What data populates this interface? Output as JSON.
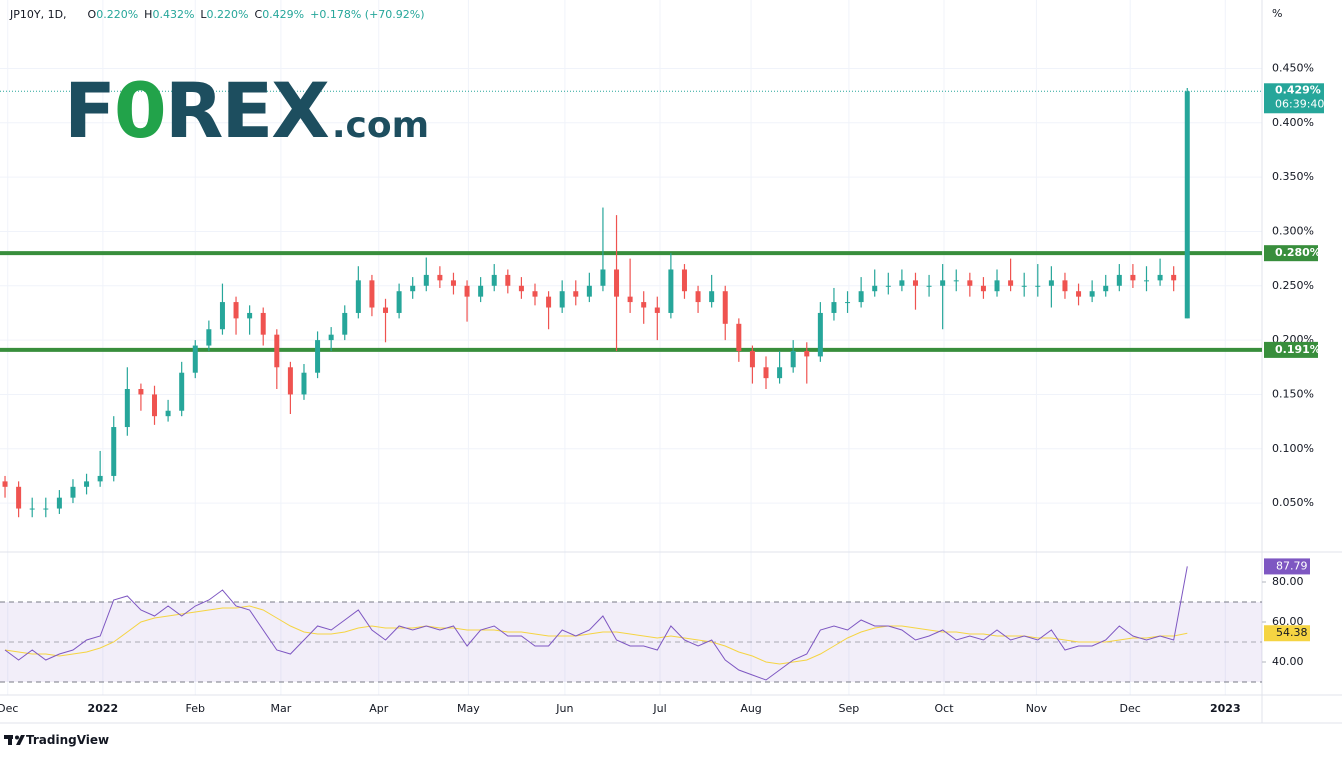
{
  "header": {
    "symbol": "JP10Y, 1D,",
    "ohlc": [
      {
        "key": "O",
        "value": "0.220%"
      },
      {
        "key": "H",
        "value": "0.432%"
      },
      {
        "key": "L",
        "value": "0.220%"
      },
      {
        "key": "C",
        "value": "0.429%"
      }
    ],
    "change": "+0.178% (+70.92%)"
  },
  "logo": {
    "parts": [
      "F",
      "0",
      "REX",
      ".com"
    ]
  },
  "footer": "TradingView",
  "chart_data": [
    {
      "type": "candlestick",
      "unit_label": "%",
      "categories": [
        null,
        null,
        null,
        null,
        null,
        null,
        null,
        null,
        null,
        null,
        null,
        null,
        null,
        null,
        null,
        null,
        null,
        null,
        null,
        null,
        null,
        null,
        null,
        null,
        null,
        null,
        null,
        null,
        null,
        null,
        null,
        null,
        null,
        null,
        null,
        null,
        null,
        null,
        null,
        null,
        null,
        null,
        null,
        null,
        null,
        null,
        null,
        null,
        null,
        null,
        null,
        null,
        null,
        null,
        null,
        null,
        null,
        null,
        null,
        null,
        null,
        null,
        null,
        null,
        null,
        null,
        null,
        null,
        null,
        null,
        null,
        null,
        null,
        null,
        null,
        null,
        null,
        null,
        null,
        null,
        null,
        null,
        null,
        null,
        null,
        null,
        null,
        null
      ],
      "open": [
        0.07,
        0.065,
        0.045,
        0.045,
        0.045,
        0.055,
        0.065,
        0.07,
        0.075,
        0.12,
        0.155,
        0.15,
        0.13,
        0.135,
        0.17,
        0.195,
        0.21,
        0.235,
        0.22,
        0.225,
        0.205,
        0.175,
        0.15,
        0.17,
        0.2,
        0.205,
        0.225,
        0.255,
        0.23,
        0.225,
        0.245,
        0.25,
        0.26,
        0.255,
        0.25,
        0.24,
        0.25,
        0.26,
        0.25,
        0.245,
        0.24,
        0.23,
        0.245,
        0.24,
        0.25,
        0.265,
        0.24,
        0.235,
        0.23,
        0.225,
        0.265,
        0.245,
        0.235,
        0.245,
        0.215,
        0.19,
        0.175,
        0.165,
        0.175,
        0.19,
        0.185,
        0.225,
        0.235,
        0.235,
        0.245,
        0.25,
        0.25,
        0.255,
        0.25,
        0.25,
        0.255,
        0.255,
        0.25,
        0.245,
        0.255,
        0.25,
        0.25,
        0.25,
        0.255,
        0.245,
        0.24,
        0.245,
        0.25,
        0.26,
        0.255,
        0.255,
        0.26,
        0.22
      ],
      "high": [
        0.075,
        0.07,
        0.055,
        0.055,
        0.062,
        0.072,
        0.077,
        0.098,
        0.13,
        0.175,
        0.16,
        0.158,
        0.145,
        0.18,
        0.2,
        0.218,
        0.252,
        0.24,
        0.232,
        0.23,
        0.21,
        0.18,
        0.178,
        0.208,
        0.212,
        0.232,
        0.268,
        0.26,
        0.238,
        0.252,
        0.258,
        0.276,
        0.268,
        0.262,
        0.255,
        0.258,
        0.27,
        0.265,
        0.258,
        0.252,
        0.245,
        0.255,
        0.255,
        0.262,
        0.322,
        0.315,
        0.275,
        0.245,
        0.24,
        0.28,
        0.27,
        0.25,
        0.26,
        0.25,
        0.22,
        0.195,
        0.185,
        0.19,
        0.2,
        0.198,
        0.235,
        0.248,
        0.245,
        0.258,
        0.265,
        0.262,
        0.265,
        0.262,
        0.26,
        0.27,
        0.265,
        0.262,
        0.258,
        0.265,
        0.275,
        0.262,
        0.27,
        0.268,
        0.262,
        0.252,
        0.255,
        0.26,
        0.27,
        0.27,
        0.268,
        0.275,
        0.268,
        0.432
      ],
      "low": [
        0.055,
        0.037,
        0.037,
        0.037,
        0.04,
        0.05,
        0.058,
        0.065,
        0.07,
        0.112,
        0.135,
        0.122,
        0.125,
        0.13,
        0.165,
        0.19,
        0.205,
        0.205,
        0.205,
        0.195,
        0.155,
        0.132,
        0.145,
        0.165,
        0.19,
        0.2,
        0.22,
        0.222,
        0.198,
        0.22,
        0.238,
        0.245,
        0.248,
        0.242,
        0.217,
        0.235,
        0.245,
        0.243,
        0.238,
        0.232,
        0.21,
        0.225,
        0.232,
        0.235,
        0.245,
        0.19,
        0.225,
        0.215,
        0.2,
        0.22,
        0.238,
        0.225,
        0.23,
        0.2,
        0.18,
        0.16,
        0.155,
        0.16,
        0.17,
        0.16,
        0.18,
        0.218,
        0.225,
        0.23,
        0.24,
        0.242,
        0.245,
        0.228,
        0.24,
        0.21,
        0.245,
        0.24,
        0.238,
        0.24,
        0.245,
        0.24,
        0.24,
        0.23,
        0.238,
        0.232,
        0.235,
        0.24,
        0.245,
        0.248,
        0.245,
        0.25,
        0.245,
        0.22
      ],
      "close": [
        0.065,
        0.045,
        0.045,
        0.045,
        0.055,
        0.065,
        0.07,
        0.075,
        0.12,
        0.155,
        0.15,
        0.13,
        0.135,
        0.17,
        0.195,
        0.21,
        0.235,
        0.22,
        0.225,
        0.205,
        0.175,
        0.15,
        0.17,
        0.2,
        0.205,
        0.225,
        0.255,
        0.23,
        0.225,
        0.245,
        0.25,
        0.26,
        0.255,
        0.25,
        0.24,
        0.25,
        0.26,
        0.25,
        0.245,
        0.24,
        0.23,
        0.245,
        0.24,
        0.25,
        0.265,
        0.24,
        0.235,
        0.23,
        0.225,
        0.265,
        0.245,
        0.235,
        0.245,
        0.215,
        0.19,
        0.175,
        0.165,
        0.175,
        0.19,
        0.185,
        0.225,
        0.235,
        0.235,
        0.245,
        0.25,
        0.25,
        0.255,
        0.25,
        0.25,
        0.255,
        0.255,
        0.25,
        0.245,
        0.255,
        0.25,
        0.25,
        0.25,
        0.255,
        0.245,
        0.24,
        0.245,
        0.25,
        0.26,
        0.255,
        0.255,
        0.26,
        0.255,
        0.429
      ],
      "up_color": "#26a69a",
      "down_color": "#ef5350",
      "ylim": [
        0.005,
        0.513
      ],
      "yticks": [
        {
          "value": 0.05,
          "label": "0.050%"
        },
        {
          "value": 0.1,
          "label": "0.100%"
        },
        {
          "value": 0.15,
          "label": "0.150%"
        },
        {
          "value": 0.2,
          "label": "0.200%"
        },
        {
          "value": 0.25,
          "label": "0.250%"
        },
        {
          "value": 0.3,
          "label": "0.300%"
        },
        {
          "value": 0.35,
          "label": "0.350%"
        },
        {
          "value": 0.4,
          "label": "0.400%"
        },
        {
          "value": 0.45,
          "label": "0.450%"
        }
      ],
      "xlim": [
        -0.37,
        92.5
      ],
      "xticks": [
        {
          "value": 0.2,
          "label": "Dec"
        },
        {
          "value": 7.2,
          "label": "2022"
        },
        {
          "value": 14,
          "label": "Feb"
        },
        {
          "value": 20.3,
          "label": "Mar"
        },
        {
          "value": 27.5,
          "label": "Apr"
        },
        {
          "value": 34.1,
          "label": "May"
        },
        {
          "value": 41.2,
          "label": "Jun"
        },
        {
          "value": 48.2,
          "label": "Jul"
        },
        {
          "value": 54.9,
          "label": "Aug"
        },
        {
          "value": 62.1,
          "label": "Sep"
        },
        {
          "value": 69.1,
          "label": "Oct"
        },
        {
          "value": 75.9,
          "label": "Nov"
        },
        {
          "value": 82.8,
          "label": "Dec"
        },
        {
          "value": 89.8,
          "label": "2023"
        }
      ],
      "levels": [
        {
          "value": 0.28,
          "label": "0.280%",
          "color": "#388e3c"
        },
        {
          "value": 0.191,
          "label": "0.191%",
          "color": "#388e3c"
        }
      ],
      "last_price": {
        "label": "0.429%",
        "countdown": "06:39:40"
      },
      "grid": true
    },
    {
      "type": "line",
      "series": [
        {
          "color": "#7e57c2",
          "values": [
            46,
            41,
            46,
            41,
            44,
            46,
            51,
            53,
            71,
            73,
            66,
            63,
            68,
            63,
            68,
            71,
            76,
            68,
            66,
            56,
            46,
            44,
            51,
            58,
            56,
            61,
            66,
            56,
            51,
            58,
            56,
            58,
            56,
            58,
            48,
            56,
            58,
            53,
            53,
            48,
            48,
            56,
            53,
            56,
            63,
            51,
            48,
            48,
            46,
            58,
            51,
            48,
            51,
            41,
            36,
            33.5,
            31,
            36,
            41,
            44,
            56,
            58,
            56,
            61,
            58,
            58,
            56,
            51,
            53,
            56,
            51,
            53,
            51,
            56,
            51,
            53,
            51,
            56,
            46,
            48,
            48,
            51,
            58,
            53,
            51,
            53,
            51,
            87.79
          ],
          "label_color": "#ffffff"
        },
        {
          "color": "#f5d442",
          "values": [
            46,
            45,
            44,
            44,
            43,
            44,
            45,
            47,
            50,
            55,
            60,
            62,
            63,
            64,
            65,
            66,
            67,
            67,
            68,
            66,
            62,
            58,
            55,
            54,
            54,
            55,
            57,
            58,
            57,
            57,
            57,
            58,
            57,
            57,
            56,
            56,
            56,
            55,
            55,
            54,
            53,
            53,
            53,
            54,
            55,
            55,
            54,
            53,
            52,
            53,
            52,
            51,
            50,
            48,
            45,
            43,
            40,
            39,
            40,
            41,
            44,
            48,
            52,
            55,
            57,
            58,
            58,
            57,
            56,
            55,
            55,
            54,
            54,
            53,
            53,
            53,
            52,
            52,
            51,
            50,
            50,
            50,
            51,
            52,
            52,
            53,
            53,
            54.38
          ],
          "label_color": "#131722"
        }
      ],
      "ylim": [
        23.5,
        95
      ],
      "yticks": [
        {
          "value": 40,
          "label": "40.00"
        },
        {
          "value": 60,
          "label": "60.00"
        },
        {
          "value": 80,
          "label": "80.00"
        }
      ],
      "bands": [
        30,
        70
      ],
      "midline": 50,
      "band_color": "#7e57c2"
    }
  ]
}
